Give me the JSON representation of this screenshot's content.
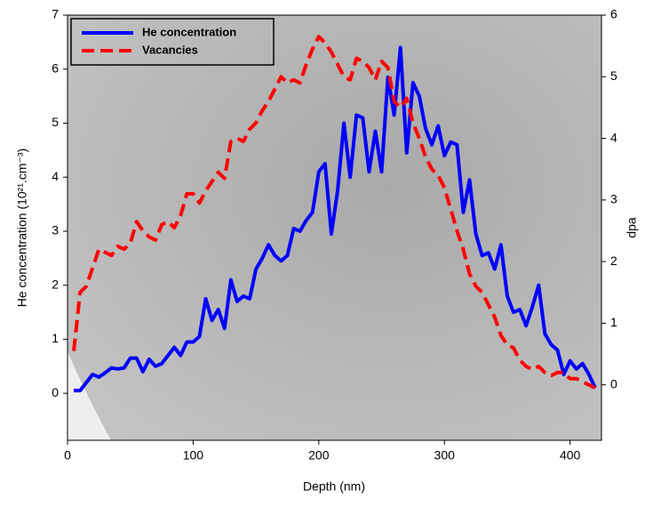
{
  "chart_data": {
    "type": "line",
    "xlabel": "Depth (nm)",
    "ylabel": "He concentration (10²¹.cm⁻³)",
    "y2label": "dpa",
    "x": [
      5,
      10,
      15,
      20,
      25,
      30,
      35,
      40,
      45,
      50,
      55,
      60,
      65,
      70,
      75,
      80,
      85,
      90,
      95,
      100,
      105,
      110,
      115,
      120,
      125,
      130,
      135,
      140,
      145,
      150,
      155,
      160,
      165,
      170,
      175,
      180,
      185,
      190,
      195,
      200,
      205,
      210,
      215,
      220,
      225,
      230,
      235,
      240,
      245,
      250,
      255,
      260,
      265,
      270,
      275,
      280,
      285,
      290,
      295,
      300,
      305,
      310,
      315,
      320,
      325,
      330,
      335,
      340,
      345,
      350,
      355,
      360,
      365,
      370,
      375,
      380,
      385,
      390,
      395,
      400,
      405,
      410,
      415,
      420
    ],
    "series": [
      {
        "name": "He concentration",
        "color": "#0000ff",
        "dash": "solid",
        "values": [
          0.05,
          0.05,
          0.2,
          0.35,
          0.3,
          0.38,
          0.47,
          0.45,
          0.47,
          0.65,
          0.65,
          0.4,
          0.63,
          0.5,
          0.55,
          0.7,
          0.85,
          0.7,
          0.95,
          0.95,
          1.05,
          1.75,
          1.35,
          1.55,
          1.2,
          2.1,
          1.7,
          1.8,
          1.75,
          2.3,
          2.5,
          2.75,
          2.55,
          2.45,
          2.55,
          3.05,
          3.0,
          3.2,
          3.35,
          4.1,
          4.25,
          2.95,
          3.75,
          5.0,
          4.0,
          5.15,
          5.1,
          4.1,
          4.85,
          4.1,
          5.85,
          5.15,
          6.4,
          4.45,
          5.75,
          5.5,
          4.9,
          4.6,
          4.95,
          4.4,
          4.65,
          4.6,
          3.35,
          3.95,
          2.95,
          2.55,
          2.6,
          2.3,
          2.75,
          1.8,
          1.5,
          1.55,
          1.25,
          1.6,
          2.0,
          1.1,
          0.9,
          0.8,
          0.35,
          0.6,
          0.45,
          0.55,
          0.35,
          0.1
        ]
      },
      {
        "name": "Vacancies",
        "color": "#ff0000",
        "dash": "dashed",
        "axis": "y2",
        "values": [
          0.55,
          1.5,
          1.6,
          1.9,
          2.2,
          2.15,
          2.1,
          2.25,
          2.2,
          2.3,
          2.65,
          2.5,
          2.4,
          2.35,
          2.6,
          2.65,
          2.55,
          2.75,
          3.1,
          3.1,
          2.95,
          3.15,
          3.3,
          3.45,
          3.35,
          3.95,
          4.0,
          3.95,
          4.15,
          4.25,
          4.45,
          4.6,
          4.8,
          5.0,
          4.9,
          4.95,
          4.9,
          5.2,
          5.45,
          5.65,
          5.55,
          5.4,
          5.2,
          5.0,
          4.95,
          5.3,
          5.25,
          5.15,
          4.95,
          5.25,
          5.15,
          4.6,
          4.5,
          4.65,
          4.25,
          4.0,
          3.7,
          3.5,
          3.4,
          3.2,
          2.85,
          2.5,
          2.2,
          1.8,
          1.6,
          1.5,
          1.3,
          1.1,
          0.8,
          0.65,
          0.6,
          0.4,
          0.3,
          0.25,
          0.3,
          0.2,
          0.15,
          0.2,
          0.2,
          0.1,
          0.1,
          0.05,
          0.0,
          -0.05
        ]
      }
    ],
    "xlim": [
      0,
      425
    ],
    "xticks": [
      0,
      100,
      200,
      300,
      400
    ],
    "ylim": [
      -0.87,
      7
    ],
    "yticks": [
      0,
      1,
      2,
      3,
      4,
      5,
      6,
      7
    ],
    "y2lim": [
      -0.9,
      6
    ],
    "y2ticks": [
      0,
      1,
      2,
      3,
      4,
      5,
      6
    ],
    "legend": "upper left"
  }
}
